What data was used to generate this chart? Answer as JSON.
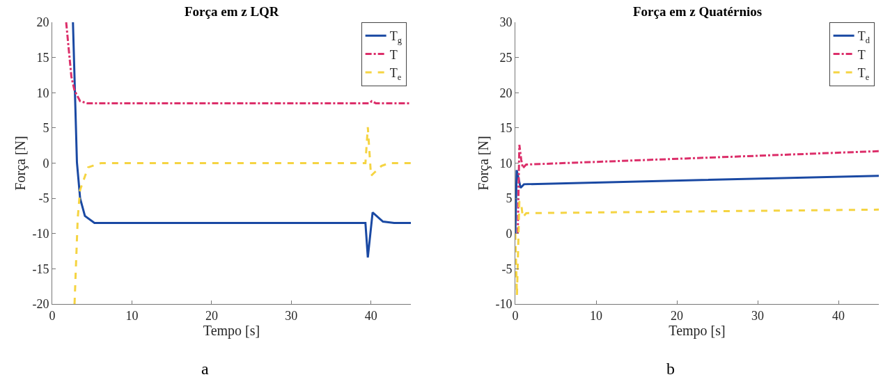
{
  "chart_data": [
    {
      "type": "line",
      "title": "Força em z LQR",
      "xlabel": "Tempo [s]",
      "ylabel": "Força [N]",
      "xlim": [
        0,
        45
      ],
      "ylim": [
        -20,
        20
      ],
      "xticks": [
        0,
        10,
        20,
        30,
        40
      ],
      "yticks": [
        -20,
        -15,
        -10,
        -5,
        0,
        5,
        10,
        15,
        20
      ],
      "legend": "top right",
      "annotations": [
        "a"
      ],
      "series": [
        {
          "name": "T$_{g}$",
          "color": "#1a49a3",
          "line_style": "solid",
          "x": [
            2.6,
            3.1,
            3.5,
            4.1,
            5.3,
            39.3,
            39.6,
            40.2,
            41.5,
            42.9,
            45
          ],
          "values": [
            20,
            0.1,
            -5,
            -7.5,
            -8.5,
            -8.5,
            -13.4,
            -7.0,
            -8.3,
            -8.5,
            -8.5
          ]
        },
        {
          "name": "T",
          "color": "#dc2f6a",
          "line_style": "dashdot",
          "x": [
            1.75,
            2.4,
            2.8,
            3.5,
            4.4,
            39.8,
            40.1,
            40.6,
            45
          ],
          "values": [
            20,
            12.3,
            10.3,
            8.8,
            8.5,
            8.5,
            8.8,
            8.5,
            8.5
          ]
        },
        {
          "name": "T$_{e}$",
          "color": "#f5d442",
          "line_style": "dashed",
          "x": [
            2.8,
            3.2,
            3.5,
            4.5,
            6.1,
            39.3,
            39.6,
            40.0,
            41.3,
            42.3,
            45
          ],
          "values": [
            -20,
            -7.8,
            -3.8,
            -0.6,
            0,
            0,
            5.1,
            -1.8,
            -0.4,
            0,
            0
          ]
        }
      ]
    },
    {
      "type": "line",
      "title": "Força em z Quatérnios",
      "xlabel": "Tempo [s]",
      "ylabel": "Força [N]",
      "xlim": [
        0,
        45
      ],
      "ylim": [
        -10,
        30
      ],
      "xticks": [
        0,
        10,
        20,
        30,
        40
      ],
      "yticks": [
        -10,
        -5,
        0,
        5,
        10,
        15,
        20,
        25,
        30
      ],
      "legend": "top right",
      "annotations": [
        "b"
      ],
      "series": [
        {
          "name": "T$_{d}$",
          "color": "#1a49a3",
          "line_style": "solid",
          "x": [
            0,
            0.17,
            0.65,
            1.07,
            45
          ],
          "values": [
            0,
            9.0,
            6.5,
            7.0,
            8.2
          ]
        },
        {
          "name": "T",
          "color": "#dc2f6a",
          "line_style": "dashdot",
          "x": [
            0.3,
            0.5,
            0.73,
            0.93,
            1.35,
            45
          ],
          "values": [
            0,
            12.6,
            10.5,
            9.3,
            9.8,
            11.7
          ]
        },
        {
          "name": "T$_{e}$",
          "color": "#f5d442",
          "line_style": "dashed",
          "x": [
            0,
            0.2,
            0.5,
            0.75,
            0.93,
            1.35,
            45
          ],
          "values": [
            0,
            -8.8,
            4.6,
            4.0,
            2.3,
            2.9,
            3.4
          ]
        }
      ]
    }
  ]
}
